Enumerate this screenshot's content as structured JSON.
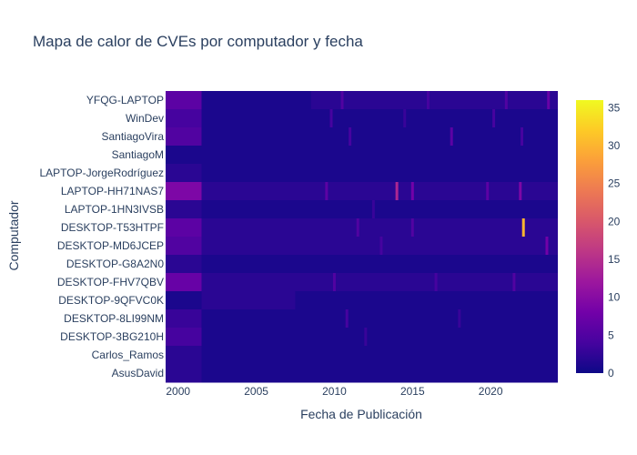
{
  "chart_data": {
    "type": "heatmap",
    "title": "Mapa de calor de CVEs por computador y fecha",
    "xlabel": "Fecha de Publicación",
    "ylabel": "Computador",
    "x_range": [
      1999.2,
      2024.3
    ],
    "x_ticks": [
      2000,
      2005,
      2010,
      2015,
      2020
    ],
    "y_categories": [
      "YFQG-LAPTOP",
      "WinDev",
      "SantiagoVira",
      "SantiagoM",
      "LAPTOP-JorgeRodríguez",
      "LAPTOP-HH71NAS7",
      "LAPTOP-1HN3IVSB",
      "DESKTOP-T53HTPF",
      "DESKTOP-MD6JCEP",
      "DESKTOP-G8A2N0",
      "DESKTOP-FHV7QBV",
      "DESKTOP-9QFVC0K",
      "DESKTOP-8LI99NM",
      "DESKTOP-3BG210H",
      "Carlos_Ramos",
      "AsusDavid"
    ],
    "colorbar": {
      "range": [
        0,
        36
      ],
      "ticks": [
        0,
        5,
        10,
        15,
        20,
        25,
        30,
        35
      ],
      "colorscale": "plasma",
      "colors": [
        "#0d0887",
        "#46039f",
        "#7201a8",
        "#9c179e",
        "#bd3786",
        "#d8576b",
        "#ed7953",
        "#fb9f3a",
        "#fdca26",
        "#f0f921"
      ]
    },
    "row_values": [
      {
        "name": "YFQG-LAPTOP",
        "segments": [
          {
            "x": [
              1999.2,
              2001.5
            ],
            "value": 6
          },
          {
            "x": [
              2001.5,
              2008.5
            ],
            "value": 1
          },
          {
            "x": [
              2008.5,
              2024.3
            ],
            "value": 2
          }
        ],
        "highlights": [
          {
            "x": 2010.5,
            "value": 5
          },
          {
            "x": 2016.0,
            "value": 4
          },
          {
            "x": 2021.0,
            "value": 5
          },
          {
            "x": 2023.7,
            "value": 7
          }
        ]
      },
      {
        "name": "WinDev",
        "segments": [
          {
            "x": [
              1999.2,
              2001.5
            ],
            "value": 4
          },
          {
            "x": [
              2001.5,
              2024.3
            ],
            "value": 1
          }
        ],
        "highlights": [
          {
            "x": 2009.8,
            "value": 4
          },
          {
            "x": 2014.5,
            "value": 3
          },
          {
            "x": 2020.2,
            "value": 4
          }
        ]
      },
      {
        "name": "SantiagoVira",
        "segments": [
          {
            "x": [
              1999.2,
              2001.5
            ],
            "value": 5
          },
          {
            "x": [
              2001.5,
              2024.3
            ],
            "value": 1
          }
        ],
        "highlights": [
          {
            "x": 2011.0,
            "value": 4
          },
          {
            "x": 2017.5,
            "value": 6
          },
          {
            "x": 2022.0,
            "value": 4
          }
        ]
      },
      {
        "name": "SantiagoM",
        "segments": [
          {
            "x": [
              1999.2,
              2024.3
            ],
            "value": 1
          }
        ],
        "highlights": []
      },
      {
        "name": "LAPTOP-JorgeRodríguez",
        "segments": [
          {
            "x": [
              1999.2,
              2001.5
            ],
            "value": 2
          },
          {
            "x": [
              2001.5,
              2024.3
            ],
            "value": 1
          }
        ],
        "highlights": []
      },
      {
        "name": "LAPTOP-HH71NAS7",
        "segments": [
          {
            "x": [
              1999.2,
              2001.5
            ],
            "value": 9
          },
          {
            "x": [
              2001.5,
              2024.3
            ],
            "value": 2
          }
        ],
        "highlights": [
          {
            "x": 2009.5,
            "value": 6
          },
          {
            "x": 2014.0,
            "value": 14
          },
          {
            "x": 2015.0,
            "value": 8
          },
          {
            "x": 2019.8,
            "value": 6
          },
          {
            "x": 2021.9,
            "value": 9
          }
        ]
      },
      {
        "name": "LAPTOP-1HN3IVSB",
        "segments": [
          {
            "x": [
              1999.2,
              2001.5
            ],
            "value": 2
          },
          {
            "x": [
              2001.5,
              2024.3
            ],
            "value": 1
          }
        ],
        "highlights": [
          {
            "x": 2012.5,
            "value": 3
          }
        ]
      },
      {
        "name": "DESKTOP-T53HTPF",
        "segments": [
          {
            "x": [
              1999.2,
              2001.5
            ],
            "value": 6
          },
          {
            "x": [
              2001.5,
              2024.3
            ],
            "value": 2
          }
        ],
        "highlights": [
          {
            "x": 2011.5,
            "value": 5
          },
          {
            "x": 2015.0,
            "value": 5
          },
          {
            "x": 2022.1,
            "value": 30
          }
        ]
      },
      {
        "name": "DESKTOP-MD6JCEP",
        "segments": [
          {
            "x": [
              1999.2,
              2001.5
            ],
            "value": 5
          },
          {
            "x": [
              2001.5,
              2024.3
            ],
            "value": 2
          }
        ],
        "highlights": [
          {
            "x": 2013.0,
            "value": 4
          },
          {
            "x": 2023.6,
            "value": 8
          }
        ]
      },
      {
        "name": "DESKTOP-G8A2N0",
        "segments": [
          {
            "x": [
              1999.2,
              2001.5
            ],
            "value": 2
          },
          {
            "x": [
              2001.5,
              2024.3
            ],
            "value": 1
          }
        ],
        "highlights": []
      },
      {
        "name": "DESKTOP-FHV7QBV",
        "segments": [
          {
            "x": [
              1999.2,
              2001.5
            ],
            "value": 7
          },
          {
            "x": [
              2001.5,
              2024.3
            ],
            "value": 2
          }
        ],
        "highlights": [
          {
            "x": 2010.0,
            "value": 5
          },
          {
            "x": 2016.5,
            "value": 4
          },
          {
            "x": 2021.5,
            "value": 5
          }
        ]
      },
      {
        "name": "DESKTOP-9QFVC0K",
        "segments": [
          {
            "x": [
              1999.2,
              2001.5
            ],
            "value": 1
          },
          {
            "x": [
              2001.5,
              2007.5
            ],
            "value": 2
          },
          {
            "x": [
              2007.5,
              2024.3
            ],
            "value": 1
          }
        ],
        "highlights": []
      },
      {
        "name": "DESKTOP-8LI99NM",
        "segments": [
          {
            "x": [
              1999.2,
              2001.5
            ],
            "value": 3
          },
          {
            "x": [
              2001.5,
              2024.3
            ],
            "value": 1
          }
        ],
        "highlights": [
          {
            "x": 2010.8,
            "value": 4
          },
          {
            "x": 2018.0,
            "value": 3
          }
        ]
      },
      {
        "name": "DESKTOP-3BG210H",
        "segments": [
          {
            "x": [
              1999.2,
              2001.5
            ],
            "value": 4
          },
          {
            "x": [
              2001.5,
              2024.3
            ],
            "value": 1
          }
        ],
        "highlights": [
          {
            "x": 2012.0,
            "value": 3
          }
        ]
      },
      {
        "name": "Carlos_Ramos",
        "segments": [
          {
            "x": [
              1999.2,
              2001.5
            ],
            "value": 2
          },
          {
            "x": [
              2001.5,
              2024.3
            ],
            "value": 1
          }
        ],
        "highlights": []
      },
      {
        "name": "AsusDavid",
        "segments": [
          {
            "x": [
              1999.2,
              2001.5
            ],
            "value": 2
          },
          {
            "x": [
              2001.5,
              2024.3
            ],
            "value": 1
          }
        ],
        "highlights": []
      }
    ]
  }
}
